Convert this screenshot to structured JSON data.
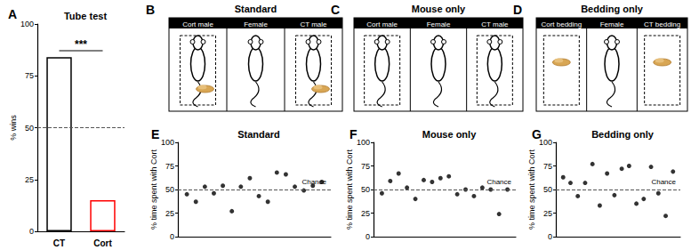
{
  "chart_data": [
    {
      "type": "bar",
      "panel": "A",
      "title": "Tube test",
      "ylabel": "% wins",
      "categories": [
        "CT",
        "Cort"
      ],
      "values": [
        84,
        15
      ],
      "colors": [
        "#000000",
        "#ff0000"
      ],
      "ylim": [
        0,
        100
      ],
      "yticks": [
        0,
        25,
        50,
        75,
        100
      ],
      "reference_line": 50,
      "annotation": "***"
    },
    {
      "type": "scatter",
      "panel": "E",
      "title": "Standard",
      "ylabel": "% time spent with Cort",
      "x": [
        1,
        2,
        3,
        4,
        5,
        6,
        7,
        8,
        9,
        10,
        11,
        12,
        13,
        14,
        15,
        16
      ],
      "values": [
        45,
        37,
        53,
        46,
        54,
        27,
        53,
        62,
        43,
        37,
        68,
        66,
        53,
        49,
        54,
        58
      ],
      "xlim": [
        0,
        17
      ],
      "ylim": [
        0,
        100
      ],
      "yticks": [
        0,
        25,
        50,
        75,
        100
      ],
      "reference_line": 50,
      "reference_label": "Chance",
      "tick_labels": "y",
      "color": "#000000"
    },
    {
      "type": "scatter",
      "panel": "F",
      "title": "Mouse only",
      "ylabel": "% time spent with Cort",
      "x": [
        1,
        2,
        3,
        4,
        5,
        6,
        7,
        8,
        9,
        10,
        11,
        12,
        13,
        14,
        15,
        16
      ],
      "values": [
        46,
        59,
        67,
        52,
        40,
        60,
        58,
        62,
        64,
        45,
        50,
        43,
        52,
        50,
        24,
        50
      ],
      "xlim": [
        0,
        17
      ],
      "ylim": [
        0,
        100
      ],
      "yticks": [
        0,
        25,
        50,
        75,
        100
      ],
      "reference_line": 50,
      "reference_label": "Chance",
      "tick_labels": "y",
      "color": "#000000"
    },
    {
      "type": "scatter",
      "panel": "G",
      "title": "Bedding only",
      "ylabel": "% time spent with Cort",
      "x": [
        1,
        2,
        3,
        4,
        5,
        6,
        7,
        8,
        9,
        10,
        11,
        12,
        13,
        14,
        15,
        16
      ],
      "values": [
        63,
        57,
        43,
        57,
        77,
        33,
        67,
        44,
        72,
        75,
        35,
        40,
        74,
        46,
        22,
        69
      ],
      "xlim": [
        0,
        17
      ],
      "ylim": [
        0,
        100
      ],
      "yticks": [
        0,
        25,
        50,
        75,
        100
      ],
      "reference_line": 50,
      "reference_label": "Chance",
      "tick_labels": "y",
      "color": "#000000"
    }
  ],
  "diagrams": [
    {
      "panel": "B",
      "title": "Standard",
      "compartments": [
        {
          "label": "Cort male",
          "enclosure": true,
          "mouse": true,
          "bedding": true
        },
        {
          "label": "Female",
          "enclosure": false,
          "mouse": true,
          "bedding": false
        },
        {
          "label": "CT male",
          "enclosure": true,
          "mouse": true,
          "bedding": true
        }
      ]
    },
    {
      "panel": "C",
      "title": "Mouse only",
      "compartments": [
        {
          "label": "Cort male",
          "enclosure": true,
          "mouse": true,
          "bedding": false
        },
        {
          "label": "Female",
          "enclosure": false,
          "mouse": true,
          "bedding": false
        },
        {
          "label": "CT male",
          "enclosure": true,
          "mouse": true,
          "bedding": false
        }
      ]
    },
    {
      "panel": "D",
      "title": "Bedding only",
      "compartments": [
        {
          "label": "Cort bedding",
          "enclosure": true,
          "mouse": false,
          "bedding": true
        },
        {
          "label": "Female",
          "enclosure": false,
          "mouse": true,
          "bedding": false
        },
        {
          "label": "CT bedding",
          "enclosure": true,
          "mouse": false,
          "bedding": true
        }
      ]
    }
  ]
}
